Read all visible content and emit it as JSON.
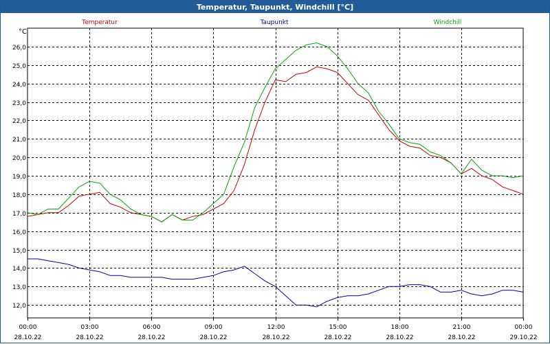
{
  "window": {
    "title": "Temperatur, Taupunkt, Windchill [°C]"
  },
  "chart_data": {
    "type": "line",
    "title": "Temperatur, Taupunkt, Windchill [°C]",
    "ylabel": "°C",
    "ylim": [
      11.3,
      27.0
    ],
    "yticks": [
      12.0,
      13.0,
      14.0,
      15.0,
      16.0,
      17.0,
      18.0,
      19.0,
      20.0,
      21.0,
      22.0,
      23.0,
      24.0,
      25.0,
      26.0
    ],
    "ytick_labels": [
      "12,0",
      "13,0",
      "14,0",
      "15,0",
      "16,0",
      "17,0",
      "18,0",
      "19,0",
      "20,0",
      "21,0",
      "22,0",
      "23,0",
      "24,0",
      "25,0",
      "26,0"
    ],
    "xlim": [
      0,
      24
    ],
    "xticks": [
      {
        "h": 0,
        "time": "00:00",
        "date": "28.10.22"
      },
      {
        "h": 3,
        "time": "03:00",
        "date": "28.10.22"
      },
      {
        "h": 6,
        "time": "06:00",
        "date": "28.10.22"
      },
      {
        "h": 9,
        "time": "09:00",
        "date": "28.10.22"
      },
      {
        "h": 12,
        "time": "12:00",
        "date": "28.10.22"
      },
      {
        "h": 15,
        "time": "15:00",
        "date": "28.10.22"
      },
      {
        "h": 18,
        "time": "18:00",
        "date": "28.10.22"
      },
      {
        "h": 21,
        "time": "21:00",
        "date": "28.10.22"
      },
      {
        "h": 24,
        "time": "00:00",
        "date": "29.10.22"
      }
    ],
    "grid": true,
    "series": [
      {
        "name": "Temperatur",
        "color": "#cc0000",
        "x": [
          0,
          0.5,
          1,
          1.5,
          2,
          2.5,
          3,
          3.5,
          4,
          4.5,
          5,
          5.5,
          6,
          6.5,
          7,
          7.5,
          8,
          8.5,
          9,
          9.5,
          10,
          10.5,
          11,
          11.5,
          12,
          12.5,
          13,
          13.5,
          14,
          14.5,
          15,
          15.5,
          16,
          16.5,
          17,
          17.5,
          18,
          18.5,
          19,
          19.5,
          20,
          20.5,
          21,
          21.5,
          22,
          22.5,
          23,
          23.5,
          24
        ],
        "values": [
          16.8,
          16.9,
          17.0,
          17.0,
          17.4,
          17.9,
          18.0,
          18.1,
          17.5,
          17.3,
          17.0,
          16.9,
          16.8,
          16.5,
          16.9,
          16.6,
          16.8,
          16.9,
          17.2,
          17.5,
          18.2,
          19.6,
          21.5,
          23.0,
          24.2,
          24.1,
          24.5,
          24.6,
          24.9,
          24.8,
          24.6,
          24.0,
          23.4,
          23.1,
          22.3,
          21.5,
          20.9,
          20.6,
          20.5,
          20.1,
          20.0,
          19.7,
          19.1,
          19.4,
          19.0,
          18.8,
          18.4,
          18.2,
          18.0
        ]
      },
      {
        "name": "Taupunkt",
        "color": "#0000aa",
        "x": [
          0,
          0.5,
          1,
          1.5,
          2,
          2.5,
          3,
          3.5,
          4,
          4.5,
          5,
          5.5,
          6,
          6.5,
          7,
          7.5,
          8,
          8.5,
          9,
          9.5,
          10,
          10.5,
          11,
          11.5,
          12,
          12.5,
          13,
          13.5,
          14,
          14.5,
          15,
          15.5,
          16,
          16.5,
          17,
          17.5,
          18,
          18.5,
          19,
          19.5,
          20,
          20.5,
          21,
          21.5,
          22,
          22.5,
          23,
          23.5,
          24
        ],
        "values": [
          14.5,
          14.5,
          14.4,
          14.3,
          14.2,
          14.0,
          13.9,
          13.8,
          13.6,
          13.6,
          13.5,
          13.5,
          13.5,
          13.5,
          13.4,
          13.4,
          13.4,
          13.5,
          13.6,
          13.8,
          13.9,
          14.1,
          13.7,
          13.3,
          13.0,
          12.5,
          12.0,
          12.0,
          11.9,
          12.2,
          12.4,
          12.5,
          12.5,
          12.6,
          12.8,
          13.0,
          13.0,
          13.1,
          13.1,
          13.0,
          12.7,
          12.7,
          12.8,
          12.6,
          12.5,
          12.6,
          12.8,
          12.8,
          12.7
        ]
      },
      {
        "name": "Windchill",
        "color": "#00aa00",
        "x": [
          0,
          0.5,
          1,
          1.5,
          2,
          2.5,
          3,
          3.5,
          4,
          4.5,
          5,
          5.5,
          6,
          6.5,
          7,
          7.5,
          8,
          8.5,
          9,
          9.5,
          10,
          10.5,
          11,
          11.5,
          12,
          12.5,
          13,
          13.5,
          14,
          14.5,
          15,
          15.5,
          16,
          16.5,
          17,
          17.5,
          18,
          18.5,
          19,
          19.5,
          20,
          20.5,
          21,
          21.5,
          22,
          22.5,
          23,
          23.5,
          24
        ],
        "values": [
          17.0,
          16.9,
          17.2,
          17.2,
          17.8,
          18.4,
          18.7,
          18.6,
          18.0,
          17.7,
          17.2,
          16.9,
          16.8,
          16.5,
          16.9,
          16.6,
          16.6,
          17.0,
          17.5,
          18.0,
          19.5,
          20.8,
          22.7,
          23.8,
          24.8,
          25.3,
          25.8,
          26.1,
          26.2,
          26.0,
          25.5,
          24.8,
          24.0,
          23.5,
          22.5,
          21.8,
          21.0,
          20.8,
          20.7,
          20.3,
          20.1,
          19.7,
          19.1,
          19.9,
          19.3,
          19.0,
          19.0,
          18.9,
          19.0
        ]
      }
    ]
  }
}
